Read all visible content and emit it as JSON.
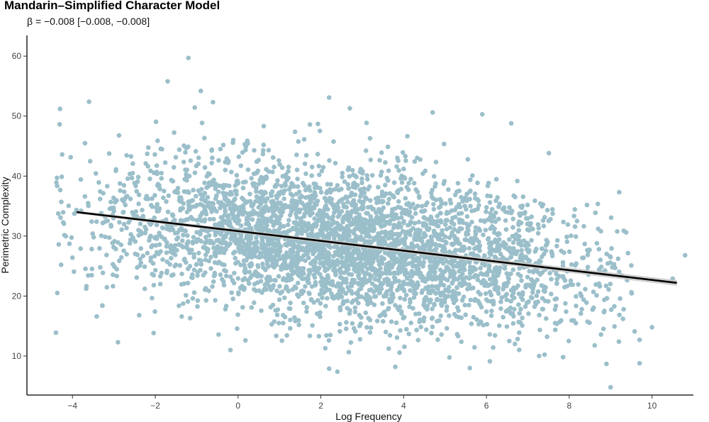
{
  "chart_data": {
    "type": "scatter",
    "title": "Mandarin–Simplified Character Model",
    "subtitle": "β = −0.008 [−0.008, −0.008]",
    "xlabel": "Log Frequency",
    "ylabel": "Perimetric Complexity",
    "xlim": [
      -5.1,
      11.0
    ],
    "ylim": [
      3.5,
      62.5
    ],
    "x_ticks": [
      -4,
      -2,
      0,
      2,
      4,
      6,
      8,
      10
    ],
    "x_tick_labels": [
      "−4",
      "−2",
      "0",
      "2",
      "4",
      "6",
      "8",
      "10"
    ],
    "y_ticks": [
      10,
      20,
      30,
      40,
      50,
      60
    ],
    "y_tick_labels": [
      "10",
      "20",
      "30",
      "40",
      "50",
      "60"
    ],
    "grid": false,
    "point_color": "#9bbfca",
    "line_color": "#000000",
    "ribbon_color": "#c8c8c8",
    "fit_line": {
      "x": [
        -3.9,
        10.6
      ],
      "y": [
        34.0,
        22.2
      ]
    },
    "points_summary": "thousands of points; dense cloud centred near x≈2–4, y≈28; spread y≈8–58",
    "notable_points": [
      {
        "x": -1.2,
        "y": 59.7
      },
      {
        "x": -1.7,
        "y": 55.8
      },
      {
        "x": -0.9,
        "y": 54.2
      },
      {
        "x": -4.3,
        "y": 51.2
      },
      {
        "x": -3.6,
        "y": 52.4
      },
      {
        "x": 2.2,
        "y": 53.1
      },
      {
        "x": 2.7,
        "y": 51.3
      },
      {
        "x": 4.7,
        "y": 50.6
      },
      {
        "x": 5.9,
        "y": 50.3
      },
      {
        "x": 6.6,
        "y": 48.8
      },
      {
        "x": -4.4,
        "y": 13.9
      },
      {
        "x": -2.9,
        "y": 12.3
      },
      {
        "x": 2.2,
        "y": 7.9
      },
      {
        "x": 2.4,
        "y": 7.4
      },
      {
        "x": 3.8,
        "y": 8.2
      },
      {
        "x": 5.6,
        "y": 8.0
      },
      {
        "x": 8.9,
        "y": 8.7
      },
      {
        "x": 9.0,
        "y": 4.8
      },
      {
        "x": 9.2,
        "y": 12.4
      },
      {
        "x": 9.7,
        "y": 8.8
      },
      {
        "x": 9.7,
        "y": 12.7
      },
      {
        "x": 10.0,
        "y": 14.8
      },
      {
        "x": 10.5,
        "y": 22.9
      },
      {
        "x": 10.8,
        "y": 26.8
      },
      {
        "x": 9.5,
        "y": 25.1
      },
      {
        "x": 8.7,
        "y": 31.2
      },
      {
        "x": 9.0,
        "y": 26.5
      }
    ]
  }
}
